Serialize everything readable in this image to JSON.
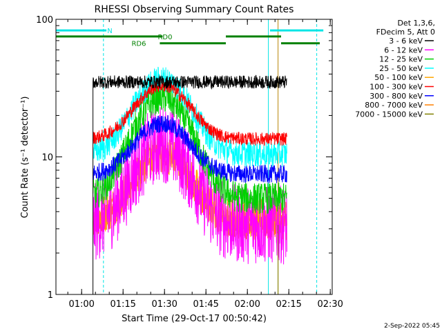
{
  "chart_data": {
    "type": "line",
    "title": "RHESSI Observing Summary Count Rates",
    "xlabel": "Start Time (29-Oct-17 00:50:42)",
    "ylabel": "Count Rate (s⁻¹ detector⁻¹)",
    "x_unit": "minutes after 00:50:42",
    "xlim": [
      0,
      100
    ],
    "ylim": [
      1,
      100
    ],
    "y_scale": "log",
    "x_ticks": [
      {
        "x": 9.3,
        "label": "01:00"
      },
      {
        "x": 24.3,
        "label": "01:15"
      },
      {
        "x": 39.3,
        "label": "01:30"
      },
      {
        "x": 54.3,
        "label": "01:45"
      },
      {
        "x": 69.3,
        "label": "02:00"
      },
      {
        "x": 84.3,
        "label": "02:15"
      },
      {
        "x": 99.3,
        "label": "02:30"
      }
    ],
    "y_ticks": [
      {
        "y": 1,
        "label": "1"
      },
      {
        "y": 10,
        "label": "10"
      },
      {
        "y": 100,
        "label": "100"
      }
    ],
    "legend_position": "right",
    "legend_header": [
      "Det 1,3,6,",
      "FDecim 5, Att 0"
    ],
    "data_window": [
      13.4,
      83.6
    ],
    "series": [
      {
        "name": "3 - 6 keV",
        "color": "#000000",
        "base": 35,
        "peak": 35,
        "noise": 0.05
      },
      {
        "name": "6 - 12 keV",
        "color": "#ff00ff",
        "base": 3.2,
        "peak": 12.5,
        "noise": 0.3
      },
      {
        "name": "12 - 25 keV",
        "color": "#00d000",
        "base": 5.0,
        "peak": 27,
        "noise": 0.12
      },
      {
        "name": "25 - 50 keV",
        "color": "#00ffff",
        "base": 10.5,
        "peak": 37,
        "noise": 0.1
      },
      {
        "name": "50 - 100 keV",
        "color": "#ffa500",
        "base": 3.6,
        "peak": 10.5,
        "noise": 0.15
      },
      {
        "name": "100 - 300 keV",
        "color": "#ff0000",
        "base": 13.5,
        "peak": 33,
        "noise": 0.05
      },
      {
        "name": "300 - 800 keV",
        "color": "#0000ff",
        "base": 7.5,
        "peak": 17.5,
        "noise": 0.07
      },
      {
        "name": "800 - 7000 keV",
        "color": "#ff8000",
        "base": 3.1,
        "peak": 10.5,
        "noise": 0.1
      },
      {
        "name": "7000 - 15000 keV",
        "color": "#808000",
        "base": 1.0,
        "peak": 1.0,
        "noise": 0
      }
    ],
    "flare_peak_x": 38.5,
    "flare_width": 12,
    "status_bars": [
      {
        "label": "N",
        "color": "#00e5e5",
        "segments": [
          [
            0,
            18.3
          ],
          [
            77.5,
            96.8
          ]
        ],
        "level": 83
      },
      {
        "label": "RD0",
        "color": "#008000",
        "segments": [
          [
            0,
            38.6
          ],
          [
            61.5,
            81.5
          ]
        ],
        "level": 75
      },
      {
        "label": "RD6",
        "color": "#008000",
        "segments": [
          [
            37.6,
            61.5
          ],
          [
            81.5,
            95.5
          ]
        ],
        "level": 67
      }
    ],
    "vlines": [
      {
        "x": 0,
        "color": "#00e5e5",
        "style": "solid"
      },
      {
        "x": 17.2,
        "color": "#00e5e5",
        "style": "dashed"
      },
      {
        "x": 76.9,
        "color": "#00e5e5",
        "style": "solid"
      },
      {
        "x": 94.4,
        "color": "#00e5e5",
        "style": "dashed"
      },
      {
        "x": 80.4,
        "color": "#b8860b",
        "style": "solid"
      }
    ],
    "footer_date": "2-Sep-2022 05:45"
  }
}
